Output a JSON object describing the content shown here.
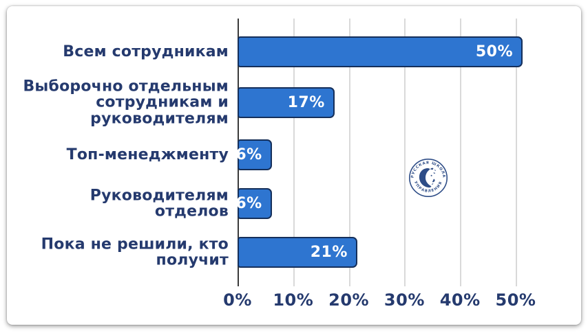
{
  "chart_data": {
    "type": "bar",
    "orientation": "horizontal",
    "title": "",
    "categories": [
      "Всем сотрудникам",
      "Выборочно отдельным\nсотрудникам и\nруководителям",
      "Топ-менеджменту",
      "Руководителям\nотделов",
      "Пока не решили, кто\nполучит"
    ],
    "values": [
      50,
      17,
      6,
      6,
      21
    ],
    "value_labels": [
      "50%",
      "17%",
      "6%",
      "6%",
      "21%"
    ],
    "x_ticks": [
      "0%",
      "10%",
      "20%",
      "30%",
      "40%",
      "50%"
    ],
    "xlim": [
      0,
      50
    ],
    "grid": true,
    "legend": false,
    "bar_color": "#2e75d0",
    "bar_border_color": "#152f5a",
    "value_text_color": "#ffffff",
    "label_color": "#253a6e",
    "gridline_color": "#d9d9d9",
    "axis_line_color": "#3a3a3a"
  },
  "watermark": {
    "ring_top": "· РУССКАЯ ШКОЛА ·",
    "ring_bottom": "УПРАВЛЕНИЯ",
    "color": "#1d3e7d"
  }
}
